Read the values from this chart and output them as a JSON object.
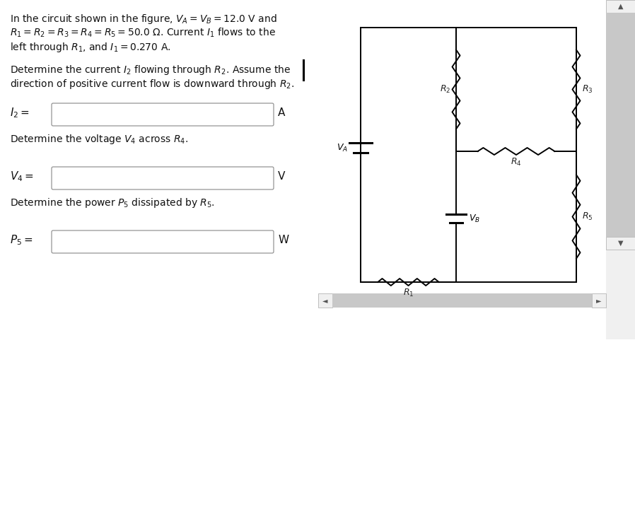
{
  "bg_color": "#ffffff",
  "text_color": "#1a1a1a",
  "problem_line1": "In the circuit shown in the figure, $V_A = V_B = 12.0$ V and",
  "problem_line2": "$R_1 = R_2 = R_3 = R_4 = R_5 = 50.0\\ \\Omega$. Current $I_1$ flows to the",
  "problem_line3": "left through $R_1$, and $I_1 = 0.270$ A.",
  "q1_line1": "Determine the current $I_2$ flowing through $R_2$. Assume the",
  "q1_line2": "direction of positive current flow is downward through $R_2$.",
  "q2_text": "Determine the voltage $V_4$ across $R_4$.",
  "q3_text": "Determine the power $P_5$ dissipated by $R_5$.",
  "scrollbar_gray": "#c8c8c8",
  "scrollbar_border": "#a0a0a0",
  "scrollbar_bg": "#f0f0f0"
}
